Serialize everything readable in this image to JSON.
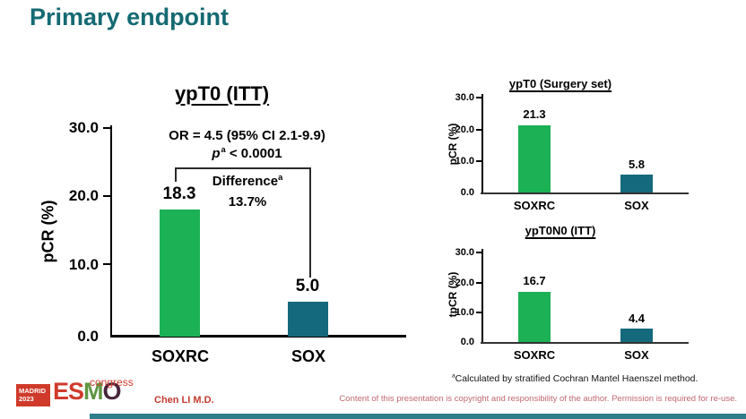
{
  "slide": {
    "title": "Primary endpoint",
    "footnote": {
      "sup": "a",
      "text": "Calculated by stratified Cochran Mantel Haenszel method."
    },
    "footer": {
      "presenter": "Chen LI M.D.",
      "copyright": "Content of this presentation is copyright and responsibility of the author. Permission is required for re-use.",
      "logo": {
        "city": "MADRID",
        "year": "2023",
        "letters": [
          "E",
          "S",
          "M",
          "O"
        ],
        "congress": "congress"
      }
    },
    "colors": {
      "title_teal": "#156a73",
      "bar_green": "#1db155",
      "bar_teal": "#15697c",
      "logo_red": "#d03a2c",
      "footer_bar_teal": "#2d7e8a"
    }
  },
  "chart_data": [
    {
      "type": "bar",
      "title": "ypT0 (ITT)",
      "categories": [
        "SOXRC",
        "SOX"
      ],
      "values": [
        18.3,
        5.0
      ],
      "labels": [
        "18.3",
        "5.0"
      ],
      "ylabel": "pCR (%)",
      "ylim": [
        0,
        30
      ],
      "yticks": [
        "30.0",
        "20.0",
        "10.0",
        "0.0"
      ],
      "bar_colors": [
        "#1db155",
        "#15697c"
      ],
      "grid": false,
      "annotations": {
        "or_line": "OR = 4.5 (95% CI 2.1-9.9)",
        "p_italic": "p",
        "p_sup": "a",
        "p_rest": "< 0.0001",
        "diff_label": "Difference",
        "diff_sup": "a",
        "diff_value": "13.7%"
      }
    },
    {
      "type": "bar",
      "title": "ypT0 (Surgery set)",
      "categories": [
        "SOXRC",
        "SOX"
      ],
      "values": [
        21.3,
        5.8
      ],
      "labels": [
        "21.3",
        "5.8"
      ],
      "ylabel": "pCR (%)",
      "ylim": [
        0,
        30
      ],
      "yticks": [
        "30.0",
        "20.0",
        "10.0",
        "0.0"
      ],
      "bar_colors": [
        "#1db155",
        "#15697c"
      ],
      "grid": false
    },
    {
      "type": "bar",
      "title": "ypT0N0 (ITT)",
      "categories": [
        "SOXRC",
        "SOX"
      ],
      "values": [
        16.7,
        4.4
      ],
      "labels": [
        "16.7",
        "4.4"
      ],
      "ylabel": "tpCR (%)",
      "ylim": [
        0,
        30
      ],
      "yticks": [
        "30.0",
        "20.0",
        "10.0",
        "0.0"
      ],
      "bar_colors": [
        "#1db155",
        "#15697c"
      ],
      "grid": false
    }
  ]
}
